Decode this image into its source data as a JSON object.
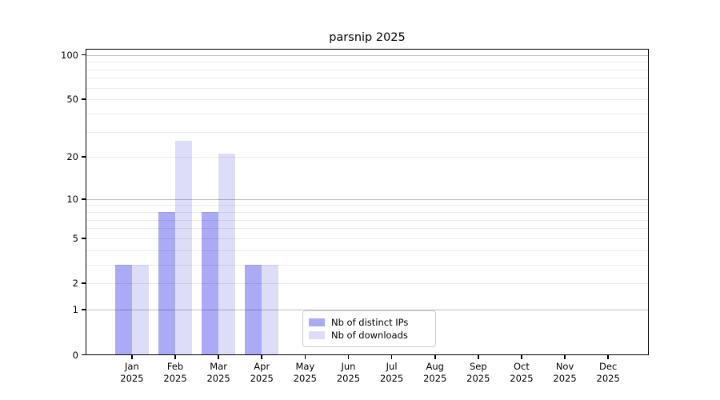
{
  "title": "parsnip 2025",
  "chart_data": {
    "type": "bar",
    "title": "parsnip 2025",
    "categories": [
      "Jan",
      "Feb",
      "Mar",
      "Apr",
      "May",
      "Jun",
      "Jul",
      "Aug",
      "Sep",
      "Oct",
      "Nov",
      "Dec"
    ],
    "category_year": "2025",
    "series": [
      {
        "name": "Nb of distinct IPs",
        "color": "#aaaaf6",
        "values": [
          3,
          8,
          8,
          3,
          0,
          0,
          0,
          0,
          0,
          0,
          0,
          0
        ]
      },
      {
        "name": "Nb of downloads",
        "color": "#ddddf8",
        "values": [
          3,
          26,
          21,
          3,
          0,
          0,
          0,
          0,
          0,
          0,
          0,
          0
        ]
      }
    ],
    "xlabel": "",
    "ylabel": "",
    "y_scale": "log1p",
    "ylim": [
      0,
      110
    ],
    "y_ticks": [
      0,
      1,
      2,
      5,
      10,
      20,
      50,
      100
    ],
    "y_major_gridlines": [
      1,
      10,
      100
    ],
    "y_minor_gridlines": [
      2,
      3,
      4,
      5,
      6,
      7,
      8,
      9,
      20,
      30,
      40,
      50,
      60,
      70,
      80,
      90
    ],
    "grid": true,
    "legend_position": "inside-bottom-center",
    "axis_color": "#000000",
    "background_color": "#ffffff"
  }
}
